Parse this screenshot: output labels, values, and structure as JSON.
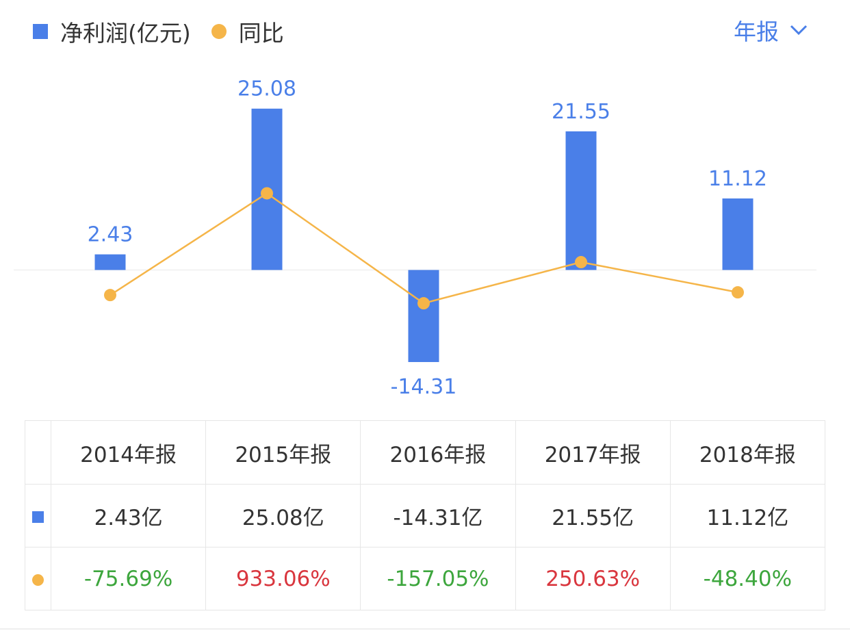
{
  "legend": {
    "series1": "净利润(亿元)",
    "series2": "同比"
  },
  "period_selector": {
    "label": "年报"
  },
  "colors": {
    "bar": "#4a7fe8",
    "line": "#f5b549",
    "positive": "#d9363e",
    "negative": "#3da63d"
  },
  "chart_data": {
    "type": "bar",
    "categories": [
      "2014年报",
      "2015年报",
      "2016年报",
      "2017年报",
      "2018年报"
    ],
    "series": [
      {
        "name": "净利润(亿元)",
        "type": "bar",
        "values": [
          2.43,
          25.08,
          -14.31,
          21.55,
          11.12
        ],
        "labels": [
          "2.43",
          "25.08",
          "-14.31",
          "21.55",
          "11.12"
        ]
      },
      {
        "name": "同比",
        "type": "line",
        "values": [
          -75.69,
          933.06,
          -157.05,
          250.63,
          -48.4
        ]
      }
    ]
  },
  "table": {
    "headers": [
      "2014年报",
      "2015年报",
      "2016年报",
      "2017年报",
      "2018年报"
    ],
    "net_profit": [
      "2.43亿",
      "25.08亿",
      "-14.31亿",
      "21.55亿",
      "11.12亿"
    ],
    "yoy": [
      "-75.69%",
      "933.06%",
      "-157.05%",
      "250.63%",
      "-48.40%"
    ]
  }
}
